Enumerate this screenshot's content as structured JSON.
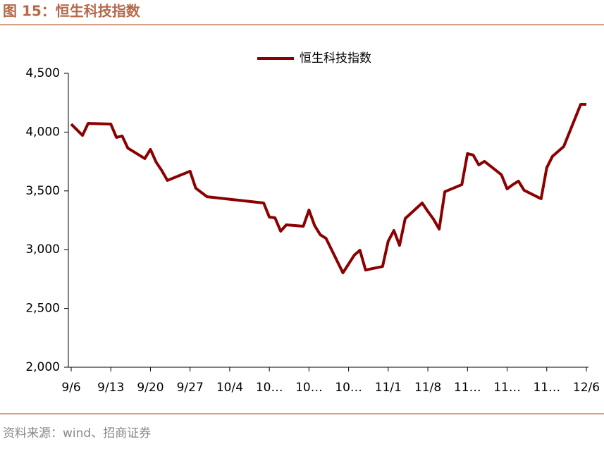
{
  "chart_data": {
    "type": "line",
    "title": "图 15：恒生科技指数",
    "source": "资料来源：wind、招商证券",
    "legend": "top",
    "x": [
      0,
      2,
      3,
      7,
      8,
      9,
      10,
      13,
      14,
      15,
      16,
      17,
      21,
      22,
      24,
      34,
      35,
      36,
      37,
      38,
      41,
      42,
      43,
      44,
      45,
      48,
      50,
      51,
      52,
      55,
      56,
      57,
      58,
      59,
      62,
      63,
      64,
      65,
      66,
      69,
      70,
      71,
      72,
      73,
      76,
      77,
      78,
      79,
      80,
      83,
      84,
      85,
      87,
      90,
      91
    ],
    "series": [
      {
        "name": "恒生科技指数",
        "color": "#8b0000",
        "values": [
          4068,
          3972,
          4074,
          4068,
          3955,
          3967,
          3864,
          3775,
          3853,
          3745,
          3673,
          3589,
          3667,
          3523,
          3450,
          3397,
          3277,
          3271,
          3157,
          3211,
          3199,
          3337,
          3205,
          3127,
          3097,
          2803,
          2953,
          2995,
          2827,
          2857,
          3073,
          3163,
          3037,
          3265,
          3397,
          3325,
          3259,
          3175,
          3493,
          3553,
          3817,
          3805,
          3721,
          3751,
          3637,
          3517,
          3553,
          3583,
          3505,
          3433,
          3697,
          3793,
          3877,
          4236,
          4236
        ]
      }
    ],
    "xlim": [
      0,
      91
    ],
    "xticks": [
      {
        "value": 0,
        "label": "9/6"
      },
      {
        "value": 7,
        "label": "9/13"
      },
      {
        "value": 14,
        "label": "9/20"
      },
      {
        "value": 21,
        "label": "9/27"
      },
      {
        "value": 28,
        "label": "10/4"
      },
      {
        "value": 35,
        "label": "10…"
      },
      {
        "value": 42,
        "label": "10…"
      },
      {
        "value": 49,
        "label": "10…"
      },
      {
        "value": 56,
        "label": "11/1"
      },
      {
        "value": 63,
        "label": "11/8"
      },
      {
        "value": 70,
        "label": "11…"
      },
      {
        "value": 77,
        "label": "11…"
      },
      {
        "value": 84,
        "label": "11…"
      },
      {
        "value": 91,
        "label": "12/6"
      }
    ],
    "ylim": [
      2000,
      4500
    ],
    "yticks": [
      {
        "value": 2000,
        "label": "2,000"
      },
      {
        "value": 2500,
        "label": "2,500"
      },
      {
        "value": 3000,
        "label": "3,000"
      },
      {
        "value": 3500,
        "label": "3,500"
      },
      {
        "value": 4000,
        "label": "4,000"
      },
      {
        "value": 4500,
        "label": "4,500"
      }
    ]
  }
}
